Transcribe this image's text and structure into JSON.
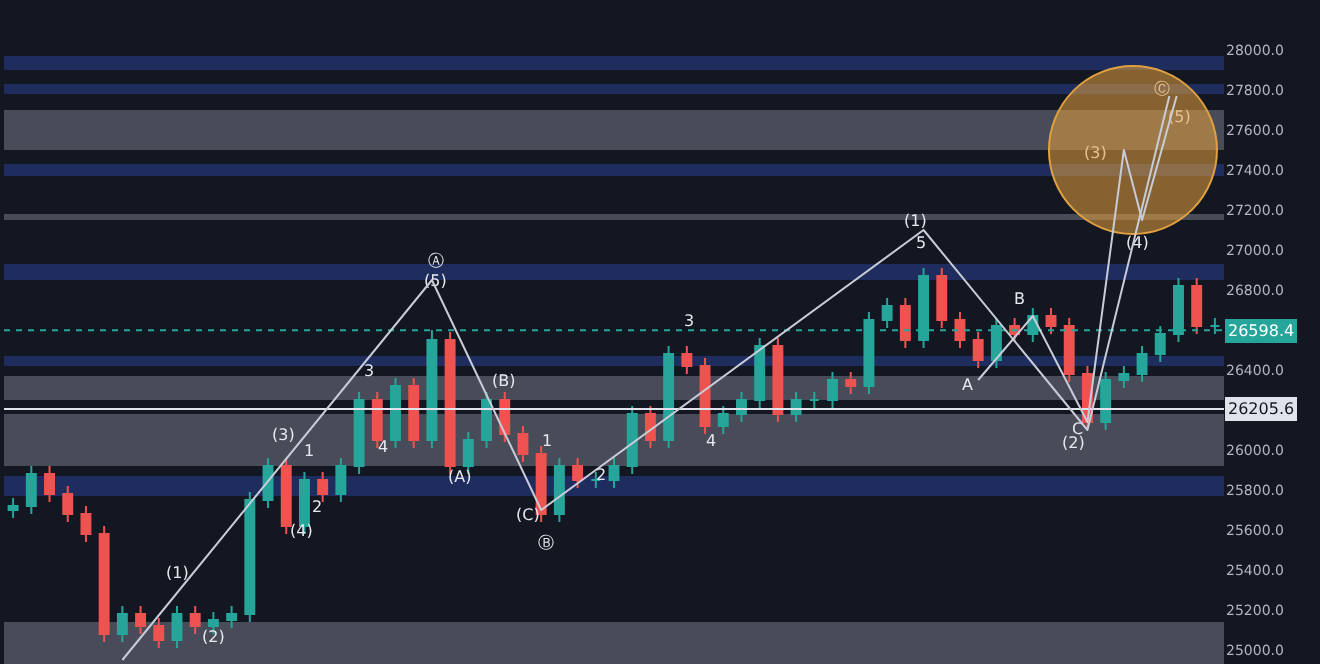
{
  "chart_data": {
    "type": "candlestick",
    "categories": [
      null,
      null,
      null,
      null,
      null,
      null,
      null,
      null,
      null,
      null,
      null,
      null,
      null,
      null,
      null,
      null,
      null,
      null,
      null,
      null,
      null,
      null,
      null,
      null,
      null,
      null,
      null,
      null,
      null,
      null,
      null,
      null,
      null,
      null,
      null,
      null,
      null,
      null,
      null,
      null,
      null,
      null,
      null,
      null,
      null,
      null,
      null,
      null,
      null,
      null,
      null,
      null,
      null,
      null,
      null,
      null,
      null,
      null,
      null,
      null,
      null,
      null,
      null,
      null,
      null,
      null,
      null
    ],
    "ohlc": [
      [
        25700,
        25760,
        25660,
        25720
      ],
      [
        25720,
        25920,
        25680,
        25880
      ],
      [
        25880,
        25920,
        25740,
        25780
      ],
      [
        25780,
        25820,
        25640,
        25680
      ],
      [
        25680,
        25720,
        25540,
        25580
      ],
      [
        25580,
        25620,
        25040,
        25080
      ],
      [
        25080,
        25220,
        25040,
        25180
      ],
      [
        25180,
        25220,
        25080,
        25120
      ],
      [
        25120,
        25160,
        25010,
        25050
      ],
      [
        25050,
        25220,
        25010,
        25180
      ],
      [
        25180,
        25220,
        25080,
        25120
      ],
      [
        25120,
        25190,
        25080,
        25150
      ],
      [
        25150,
        25220,
        25110,
        25180
      ],
      [
        25180,
        25790,
        25140,
        25750
      ],
      [
        25750,
        25960,
        25710,
        25920
      ],
      [
        25920,
        25960,
        25580,
        25620
      ],
      [
        25620,
        25890,
        25580,
        25850
      ],
      [
        25850,
        25890,
        25740,
        25780
      ],
      [
        25780,
        25960,
        25740,
        25920
      ],
      [
        25920,
        26290,
        25880,
        26250
      ],
      [
        26250,
        26290,
        26010,
        26050
      ],
      [
        26050,
        26360,
        26010,
        26320
      ],
      [
        26320,
        26360,
        26010,
        26050
      ],
      [
        26050,
        26600,
        26010,
        26550
      ],
      [
        26550,
        26590,
        25880,
        25920
      ],
      [
        25920,
        26090,
        25880,
        26050
      ],
      [
        26050,
        26290,
        26010,
        26250
      ],
      [
        26250,
        26290,
        26040,
        26080
      ],
      [
        26080,
        26120,
        25940,
        25980
      ],
      [
        25980,
        26020,
        25640,
        25680
      ],
      [
        25680,
        25960,
        25640,
        25920
      ],
      [
        25920,
        25960,
        25810,
        25850
      ],
      [
        25850,
        25890,
        25810,
        25850
      ],
      [
        25850,
        25960,
        25810,
        25920
      ],
      [
        25920,
        26220,
        25880,
        26180
      ],
      [
        26180,
        26220,
        26010,
        26050
      ],
      [
        26050,
        26520,
        26010,
        26480
      ],
      [
        26480,
        26520,
        26380,
        26420
      ],
      [
        26420,
        26460,
        26080,
        26120
      ],
      [
        26120,
        26220,
        26080,
        26180
      ],
      [
        26180,
        26290,
        26140,
        26250
      ],
      [
        26250,
        26560,
        26210,
        26520
      ],
      [
        26520,
        26560,
        26140,
        26180
      ],
      [
        26180,
        26290,
        26140,
        26250
      ],
      [
        26250,
        26290,
        26210,
        26250
      ],
      [
        26250,
        26390,
        26210,
        26350
      ],
      [
        26350,
        26390,
        26280,
        26320
      ],
      [
        26320,
        26690,
        26280,
        26650
      ],
      [
        26650,
        26760,
        26610,
        26720
      ],
      [
        26720,
        26760,
        26510,
        26550
      ],
      [
        26550,
        26910,
        26510,
        26870
      ],
      [
        26870,
        26910,
        26610,
        26650
      ],
      [
        26650,
        26690,
        26510,
        26550
      ],
      [
        26550,
        26590,
        26410,
        26450
      ],
      [
        26450,
        26660,
        26410,
        26620
      ],
      [
        26620,
        26660,
        26540,
        26580
      ],
      [
        26580,
        26710,
        26540,
        26670
      ],
      [
        26670,
        26710,
        26580,
        26620
      ],
      [
        26620,
        26660,
        26340,
        26380
      ],
      [
        26380,
        26420,
        26100,
        26140
      ],
      [
        26140,
        26390,
        26100,
        26350
      ],
      [
        26350,
        26420,
        26310,
        26380
      ],
      [
        26380,
        26520,
        26340,
        26480
      ],
      [
        26480,
        26620,
        26440,
        26580
      ],
      [
        26580,
        26860,
        26540,
        26820
      ],
      [
        26820,
        26860,
        26580,
        26620
      ],
      [
        26620,
        26660,
        26580,
        26620
      ]
    ],
    "colors": [
      "#26a69a",
      "#26a69a",
      "#ef5350",
      "#ef5350",
      "#ef5350",
      "#ef5350",
      "#26a69a",
      "#ef5350",
      "#ef5350",
      "#26a69a",
      "#ef5350",
      "#26a69a",
      "#26a69a",
      "#26a69a",
      "#26a69a",
      "#ef5350",
      "#26a69a",
      "#ef5350",
      "#26a69a",
      "#26a69a",
      "#ef5350",
      "#26a69a",
      "#ef5350",
      "#26a69a",
      "#ef5350",
      "#26a69a",
      "#26a69a",
      "#ef5350",
      "#ef5350",
      "#ef5350",
      "#26a69a",
      "#ef5350",
      "#26a69a",
      "#26a69a",
      "#26a69a",
      "#ef5350",
      "#26a69a",
      "#ef5350",
      "#ef5350",
      "#26a69a",
      "#26a69a",
      "#26a69a",
      "#ef5350",
      "#26a69a",
      "#26a69a",
      "#26a69a",
      "#ef5350",
      "#26a69a",
      "#26a69a",
      "#ef5350",
      "#26a69a",
      "#ef5350",
      "#ef5350",
      "#ef5350",
      "#26a69a",
      "#ef5350",
      "#26a69a",
      "#ef5350",
      "#ef5350",
      "#ef5350",
      "#26a69a",
      "#26a69a",
      "#26a69a",
      "#26a69a",
      "#26a69a",
      "#ef5350",
      "#26a69a"
    ],
    "ylim": [
      24930,
      28250
    ],
    "yticks": [
      {
        "value": 28000,
        "label": "28000.0"
      },
      {
        "value": 27800,
        "label": "27800.0"
      },
      {
        "value": 27600,
        "label": "27600.0"
      },
      {
        "value": 27400,
        "label": "27400.0"
      },
      {
        "value": 27200,
        "label": "27200.0"
      },
      {
        "value": 27000,
        "label": "27000.0"
      },
      {
        "value": 26800,
        "label": "26800.0"
      },
      {
        "value": 26400,
        "label": "26400.0"
      },
      {
        "value": 26000,
        "label": "26000.0"
      },
      {
        "value": 25800,
        "label": "25800.0"
      },
      {
        "value": 25600,
        "label": "25600.0"
      },
      {
        "value": 25400,
        "label": "25400.0"
      },
      {
        "value": 25200,
        "label": "25200.0"
      },
      {
        "value": 25000,
        "label": "25000.0"
      }
    ],
    "tick_labels": "y",
    "bands": [
      {
        "axis": "y",
        "from": 27500,
        "to": 27700,
        "color": "#555a66"
      },
      {
        "axis": "y",
        "from": 27150,
        "to": 27180,
        "color": "#555a66"
      },
      {
        "axis": "y",
        "from": 26250,
        "to": 26370,
        "color": "#555a66"
      },
      {
        "axis": "y",
        "from": 25920,
        "to": 26180,
        "color": "#555a66"
      },
      {
        "axis": "y",
        "from": 24930,
        "to": 25140,
        "color": "#555a66"
      },
      {
        "axis": "y",
        "from": 27900,
        "to": 27970,
        "color": "#22336e"
      },
      {
        "axis": "y",
        "from": 27780,
        "to": 27830,
        "color": "#22336e"
      },
      {
        "axis": "y",
        "from": 27370,
        "to": 27430,
        "color": "#22336e"
      },
      {
        "axis": "y",
        "from": 26850,
        "to": 26930,
        "color": "#22336e"
      },
      {
        "axis": "y",
        "from": 26420,
        "to": 26470,
        "color": "#22336e"
      },
      {
        "axis": "y",
        "from": 25770,
        "to": 25870,
        "color": "#22336e"
      }
    ],
    "ref_lines": [
      {
        "axis": "y",
        "value": 26598.4,
        "label": "26598.4",
        "color": "#26a69a",
        "line_style": "dotted"
      },
      {
        "axis": "y",
        "value": 26205.6,
        "label": "26205.6",
        "color": "#e0e3eb",
        "line_style": "solid"
      }
    ],
    "annotations": [
      "(1)",
      "(2)",
      "(3)",
      "(4)",
      "1",
      "2",
      "3",
      "4",
      "Ⓐ",
      "(5)",
      "(B)",
      "(A)",
      "1",
      "(C)",
      "Ⓑ",
      "2",
      "3",
      "4",
      "(1)",
      "5",
      "A",
      "B",
      "C",
      "(2)",
      "Ⓒ",
      "(5)",
      "(3)",
      "(4)"
    ]
  }
}
